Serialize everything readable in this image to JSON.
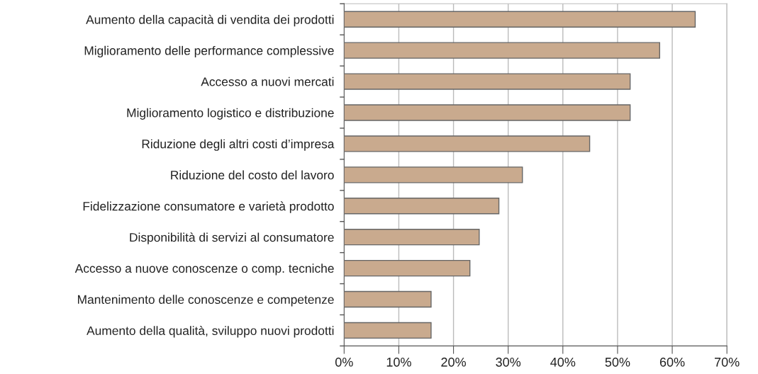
{
  "chart_data": {
    "type": "bar",
    "orientation": "horizontal",
    "categories": [
      "Aumento della capacità di vendita dei prodotti",
      "Miglioramento delle performance complessive",
      "Accesso a nuovi mercati",
      "Miglioramento logistico e distribuzione",
      "Riduzione degli altri costi d’impresa",
      "Riduzione del costo del lavoro",
      "Fidelizzazione consumatore e varietà prodotto",
      "Disponibilità di servizi al consumatore",
      "Accesso a nuove conoscenze o comp. tecniche",
      "Mantenimento delle conoscenze e competenze",
      "Aumento della qualità, sviluppo nuovi prodotti"
    ],
    "values": [
      64.2,
      57.7,
      52.3,
      52.3,
      44.9,
      32.6,
      28.3,
      24.7,
      23.0,
      15.9,
      15.9
    ],
    "color": "#c9aa8e",
    "xlim": [
      0,
      70
    ],
    "xticks": [
      {
        "value": 0,
        "label": "0%"
      },
      {
        "value": 10,
        "label": "10%"
      },
      {
        "value": 20,
        "label": "20%"
      },
      {
        "value": 30,
        "label": "30%"
      },
      {
        "value": 40,
        "label": "40%"
      },
      {
        "value": 50,
        "label": "50%"
      },
      {
        "value": 60,
        "label": "60%"
      },
      {
        "value": 70,
        "label": "70%"
      }
    ],
    "grid": "x",
    "legend": false
  }
}
